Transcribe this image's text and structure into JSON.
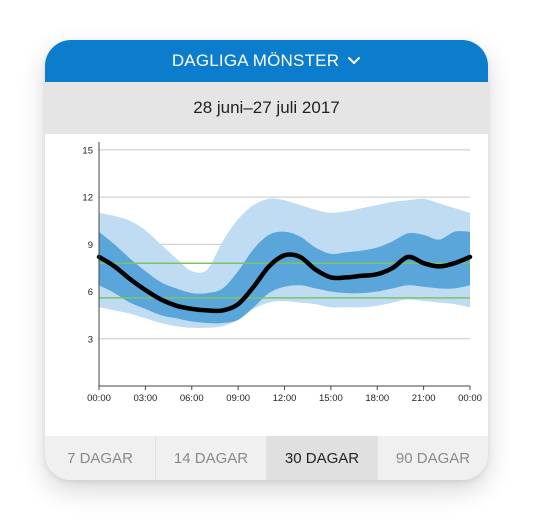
{
  "header": {
    "title": "DAGLIGA MÖNSTER",
    "dropdown_icon": "chevron-down-icon"
  },
  "date_range": "28 juni–27 juli 2017",
  "tabs": [
    {
      "label": "7 DAGAR",
      "active": false
    },
    {
      "label": "14 DAGAR",
      "active": false
    },
    {
      "label": "30 DAGAR",
      "active": true
    },
    {
      "label": "90 DAGAR",
      "active": false
    }
  ],
  "colors": {
    "header_bg": "#0b7dcc",
    "outer_band": "#bfdcf3",
    "inner_band": "#5aa6db",
    "median": "#000000",
    "target_lines": "#7bc36a",
    "grid": "#c8c8c8"
  },
  "chart_data": {
    "type": "area",
    "title": "",
    "xlabel": "",
    "ylabel": "",
    "x_ticks": [
      "00:00",
      "03:00",
      "06:00",
      "09:00",
      "12:00",
      "15:00",
      "18:00",
      "21:00",
      "00:00"
    ],
    "y_ticks": [
      3,
      6,
      9,
      12,
      15
    ],
    "ylim": [
      0,
      15.5
    ],
    "xlim": [
      0,
      24
    ],
    "grid": true,
    "target_range": [
      5.6,
      7.8
    ],
    "series": [
      {
        "x": [
          0,
          1,
          2,
          3,
          4,
          5,
          6,
          7,
          8,
          9,
          10,
          11,
          12,
          13,
          14,
          15,
          16,
          17,
          18,
          19,
          20,
          21,
          22,
          23,
          24
        ],
        "values": [
          8.2,
          7.6,
          6.8,
          6.1,
          5.5,
          5.1,
          4.9,
          4.8,
          4.8,
          5.2,
          6.3,
          7.6,
          8.3,
          8.2,
          7.4,
          6.9,
          6.9,
          7.0,
          7.1,
          7.5,
          8.2,
          7.8,
          7.6,
          7.8,
          8.2
        ]
      }
    ],
    "inner_band": {
      "lower": [
        6.4,
        5.9,
        5.3,
        4.9,
        4.5,
        4.3,
        4.1,
        4.0,
        4.0,
        4.2,
        5.0,
        5.9,
        6.3,
        6.4,
        6.2,
        6.0,
        5.9,
        5.9,
        6.0,
        6.2,
        6.4,
        6.3,
        6.2,
        6.2,
        6.4
      ],
      "upper": [
        9.8,
        9.0,
        8.1,
        7.3,
        6.6,
        6.2,
        5.9,
        5.9,
        6.2,
        7.3,
        8.7,
        9.6,
        9.8,
        9.5,
        8.8,
        8.4,
        8.5,
        8.6,
        8.8,
        9.2,
        9.7,
        9.6,
        9.3,
        9.8,
        9.8
      ]
    },
    "outer_band": {
      "lower": [
        5.0,
        4.8,
        4.6,
        4.3,
        4.0,
        3.8,
        3.7,
        3.7,
        3.8,
        4.2,
        4.9,
        5.3,
        5.4,
        5.3,
        5.2,
        5.0,
        5.0,
        5.0,
        5.1,
        5.3,
        5.5,
        5.4,
        5.3,
        5.2,
        5.0
      ],
      "upper": [
        11.0,
        10.8,
        10.5,
        9.9,
        9.0,
        8.1,
        7.3,
        7.4,
        9.2,
        10.6,
        11.5,
        11.9,
        11.8,
        11.5,
        11.2,
        11.0,
        11.1,
        11.3,
        11.5,
        11.7,
        11.8,
        11.9,
        11.6,
        11.3,
        11.0
      ]
    }
  }
}
